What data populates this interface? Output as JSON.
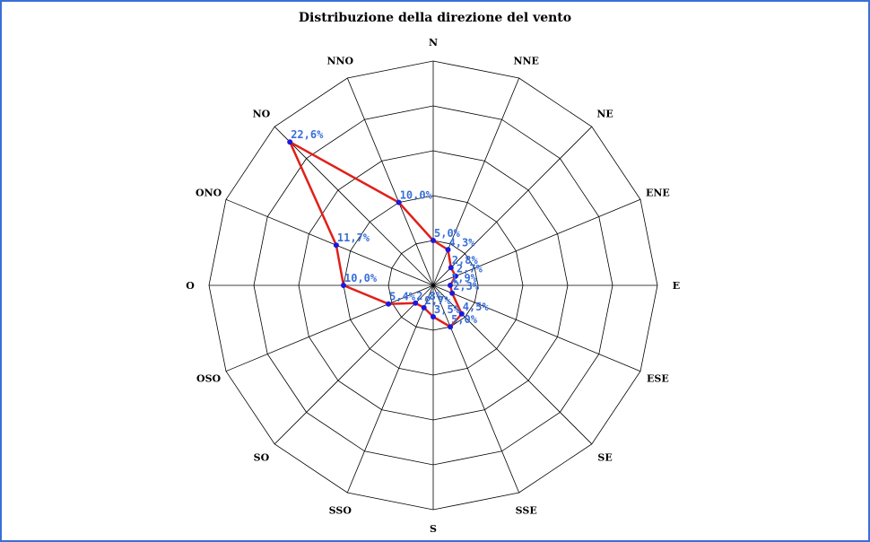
{
  "chart_data": {
    "type": "radar",
    "title": "Distribuzione della direzione del vento",
    "categories": [
      "N",
      "NNE",
      "NE",
      "ENE",
      "E",
      "ESE",
      "SE",
      "SSE",
      "S",
      "SSO",
      "SO",
      "OSO",
      "O",
      "ONO",
      "NO",
      "NNO"
    ],
    "values": [
      5.0,
      4.3,
      2.8,
      2.7,
      1.9,
      2.3,
      4.5,
      5.0,
      3.5,
      2.7,
      2.8,
      5.4,
      10.0,
      11.7,
      22.6,
      10.0
    ],
    "value_labels": [
      "5,0%",
      "4,3%",
      "2,8%",
      "2,7%",
      "1,9%",
      "2,3%",
      "4,5%",
      "5,0%",
      "3,5%",
      "2,7%",
      "2,8%",
      "5,4%",
      "10,0%",
      "11,7%",
      "22,6%",
      "10,0%"
    ],
    "rlim": [
      0,
      25
    ],
    "rings": 5,
    "series_color": "#e0201a",
    "marker_color": "#1a1adf",
    "label_color": "#3a6fd8"
  }
}
